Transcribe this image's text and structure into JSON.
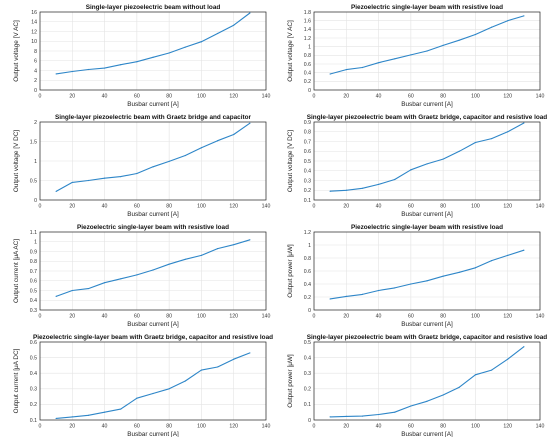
{
  "chart_data": [
    {
      "type": "line",
      "title": "Single-layer piezoelectric beam without load",
      "xlabel": "Busbar current [A]",
      "ylabel": "Output voltage [V AC]",
      "xlim": [
        0,
        140
      ],
      "ylim": [
        0,
        16
      ],
      "xticks": [
        "0",
        "20",
        "40",
        "60",
        "80",
        "100",
        "120",
        "140"
      ],
      "yticks": [
        "0",
        "2",
        "4",
        "6",
        "8",
        "10",
        "12",
        "14",
        "16"
      ],
      "grid": true,
      "series": [
        {
          "color": "#2e86c8",
          "x": [
            10,
            20,
            30,
            40,
            50,
            60,
            70,
            80,
            90,
            100,
            110,
            120,
            130
          ],
          "y": [
            3.3,
            3.8,
            4.2,
            4.5,
            5.2,
            5.8,
            6.7,
            7.6,
            8.8,
            9.9,
            11.6,
            13.3,
            15.8
          ]
        }
      ]
    },
    {
      "type": "line",
      "title": "Piezoelectric single-layer beam with resistive load",
      "xlabel": "Busbar current [A]",
      "ylabel": "Output voltage [V AC]",
      "xlim": [
        0,
        140
      ],
      "ylim": [
        0,
        1.8
      ],
      "xticks": [
        "0",
        "20",
        "40",
        "60",
        "80",
        "100",
        "120",
        "140"
      ],
      "yticks": [
        "0",
        "0.2",
        "0.4",
        "0.6",
        "0.8",
        "1",
        "1.2",
        "1.4",
        "1.6",
        "1.8"
      ],
      "grid": true,
      "series": [
        {
          "color": "#2e86c8",
          "x": [
            10,
            20,
            30,
            40,
            50,
            60,
            70,
            80,
            90,
            100,
            110,
            120,
            130
          ],
          "y": [
            0.37,
            0.47,
            0.52,
            0.63,
            0.72,
            0.81,
            0.9,
            1.03,
            1.15,
            1.28,
            1.45,
            1.6,
            1.71
          ]
        }
      ]
    },
    {
      "type": "line",
      "title": "Single-layer piezoelectric beam with Graetz bridge and capacitor",
      "xlabel": "Busbar current [A]",
      "ylabel": "Output voltage [V DC]",
      "xlim": [
        0,
        140
      ],
      "ylim": [
        0,
        2
      ],
      "xticks": [
        "0",
        "20",
        "40",
        "60",
        "80",
        "100",
        "120",
        "140"
      ],
      "yticks": [
        "0",
        "0.5",
        "1",
        "1.5",
        "2"
      ],
      "grid": true,
      "series": [
        {
          "color": "#2e86c8",
          "x": [
            10,
            20,
            30,
            40,
            50,
            60,
            70,
            80,
            90,
            100,
            110,
            120,
            130
          ],
          "y": [
            0.22,
            0.45,
            0.5,
            0.56,
            0.6,
            0.68,
            0.85,
            0.99,
            1.14,
            1.34,
            1.52,
            1.68,
            1.97
          ]
        }
      ]
    },
    {
      "type": "line",
      "title": "Single-layer piezoelectric beam with Graetz bridge, capacitor and resistive load",
      "xlabel": "Busbar current [A]",
      "ylabel": "Output voltage [V DC]",
      "xlim": [
        0,
        140
      ],
      "ylim": [
        0.1,
        0.9
      ],
      "xticks": [
        "0",
        "20",
        "40",
        "60",
        "80",
        "100",
        "120",
        "140"
      ],
      "yticks": [
        "0.1",
        "0.2",
        "0.3",
        "0.4",
        "0.5",
        "0.6",
        "0.7",
        "0.8",
        "0.9"
      ],
      "grid": true,
      "series": [
        {
          "color": "#2e86c8",
          "x": [
            10,
            20,
            30,
            40,
            50,
            60,
            70,
            80,
            90,
            100,
            110,
            120,
            130
          ],
          "y": [
            0.19,
            0.2,
            0.22,
            0.26,
            0.31,
            0.41,
            0.47,
            0.52,
            0.6,
            0.69,
            0.73,
            0.8,
            0.89
          ]
        }
      ]
    },
    {
      "type": "line",
      "title": "Piezoelectric single-layer beam with resistive load",
      "xlabel": "Busbar current [A]",
      "ylabel": "Output current [μA AC]",
      "xlim": [
        0,
        140
      ],
      "ylim": [
        0.3,
        1.1
      ],
      "xticks": [
        "0",
        "20",
        "40",
        "60",
        "80",
        "100",
        "120",
        "140"
      ],
      "yticks": [
        "0.3",
        "0.4",
        "0.5",
        "0.6",
        "0.7",
        "0.8",
        "0.9",
        "1",
        "1.1"
      ],
      "grid": true,
      "series": [
        {
          "color": "#2e86c8",
          "x": [
            10,
            20,
            30,
            40,
            50,
            60,
            70,
            80,
            90,
            100,
            110,
            120,
            130
          ],
          "y": [
            0.44,
            0.5,
            0.52,
            0.58,
            0.62,
            0.66,
            0.71,
            0.77,
            0.82,
            0.86,
            0.93,
            0.97,
            1.02
          ]
        }
      ]
    },
    {
      "type": "line",
      "title": "Piezoelectric single-layer beam with resistive load",
      "xlabel": "Busbar current [A]",
      "ylabel": "Output power [μW]",
      "xlim": [
        0,
        140
      ],
      "ylim": [
        0,
        1.2
      ],
      "xticks": [
        "0",
        "20",
        "40",
        "60",
        "80",
        "100",
        "120",
        "140"
      ],
      "yticks": [
        "0",
        "0.2",
        "0.4",
        "0.6",
        "0.8",
        "1",
        "1.2"
      ],
      "grid": true,
      "series": [
        {
          "color": "#2e86c8",
          "x": [
            10,
            20,
            30,
            40,
            50,
            60,
            70,
            80,
            90,
            100,
            110,
            120,
            130
          ],
          "y": [
            0.17,
            0.21,
            0.24,
            0.3,
            0.34,
            0.4,
            0.45,
            0.52,
            0.58,
            0.65,
            0.76,
            0.84,
            0.92
          ]
        }
      ]
    },
    {
      "type": "line",
      "title": "Piezoelectric single-layer beam with Graetz bridge, capacitor and resistive load",
      "xlabel": "Busbar current [A]",
      "ylabel": "Output current [μA DC]",
      "xlim": [
        0,
        140
      ],
      "ylim": [
        0.1,
        0.6
      ],
      "xticks": [
        "0",
        "20",
        "40",
        "60",
        "80",
        "100",
        "120",
        "140"
      ],
      "yticks": [
        "0.1",
        "0.2",
        "0.3",
        "0.4",
        "0.5",
        "0.6"
      ],
      "grid": true,
      "series": [
        {
          "color": "#2e86c8",
          "x": [
            10,
            20,
            30,
            40,
            50,
            60,
            70,
            80,
            90,
            100,
            110,
            120,
            130
          ],
          "y": [
            0.11,
            0.12,
            0.13,
            0.15,
            0.17,
            0.24,
            0.27,
            0.3,
            0.35,
            0.42,
            0.44,
            0.49,
            0.53
          ]
        }
      ]
    },
    {
      "type": "line",
      "title": "Single-layer piezoelectric beam with Graetz bridge, capacitor and resistive load",
      "xlabel": "Busbar current [A]",
      "ylabel": "Output power [μW]",
      "xlim": [
        0,
        140
      ],
      "ylim": [
        0,
        0.5
      ],
      "xticks": [
        "0",
        "20",
        "40",
        "60",
        "80",
        "100",
        "120",
        "140"
      ],
      "yticks": [
        "0",
        "0.1",
        "0.2",
        "0.3",
        "0.4",
        "0.5"
      ],
      "grid": true,
      "series": [
        {
          "color": "#2e86c8",
          "x": [
            10,
            20,
            30,
            40,
            50,
            60,
            70,
            80,
            90,
            100,
            110,
            120,
            130
          ],
          "y": [
            0.02,
            0.023,
            0.025,
            0.035,
            0.05,
            0.09,
            0.12,
            0.16,
            0.21,
            0.29,
            0.32,
            0.39,
            0.47
          ]
        }
      ]
    }
  ]
}
